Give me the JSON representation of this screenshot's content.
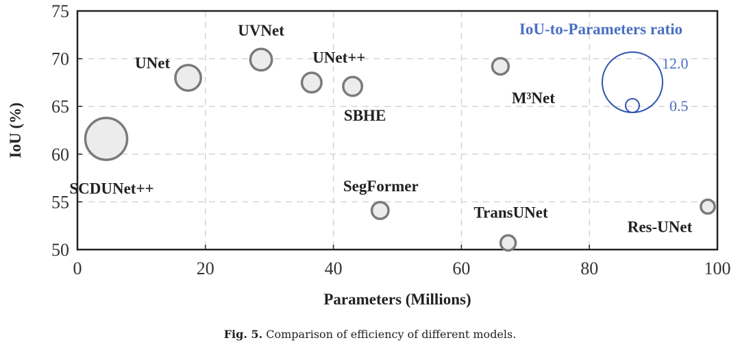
{
  "chart_data": {
    "type": "scatter",
    "xlabel": "Parameters (Millions)",
    "ylabel": "IoU (%)",
    "xlim": [
      0,
      100
    ],
    "ylim": [
      50,
      75
    ],
    "xticks": [
      "0",
      "20",
      "40",
      "60",
      "80",
      "100"
    ],
    "yticks": [
      "50",
      "55",
      "60",
      "65",
      "70",
      "75"
    ],
    "grid": true,
    "points": [
      {
        "name": "SCDUNet++",
        "x": 4.5,
        "y": 61.6,
        "ratio": 13.7
      },
      {
        "name": "UNet",
        "x": 17.3,
        "y": 68.0,
        "ratio": 3.9
      },
      {
        "name": "UVNet",
        "x": 28.7,
        "y": 69.9,
        "ratio": 2.4
      },
      {
        "name": "UNet++",
        "x": 36.6,
        "y": 67.5,
        "ratio": 1.8
      },
      {
        "name": "SBHE",
        "x": 43.0,
        "y": 67.1,
        "ratio": 1.6
      },
      {
        "name": "SegFormer",
        "x": 47.3,
        "y": 54.1,
        "ratio": 1.1
      },
      {
        "name": "M³Net",
        "x": 66.1,
        "y": 69.2,
        "ratio": 1.0
      },
      {
        "name": "TransUNet",
        "x": 67.3,
        "y": 50.7,
        "ratio": 0.75
      },
      {
        "name": "Res-UNet",
        "x": 98.5,
        "y": 54.5,
        "ratio": 0.55
      }
    ],
    "legend": {
      "title": "IoU-to-Parameters  ratio",
      "large_label": "12.0",
      "small_label": "0.5",
      "large_value": 12.0,
      "small_value": 0.5,
      "placement": "top-right",
      "color": "#4a6fc0"
    },
    "colors": {
      "bubble_fill": "#ececec",
      "bubble_stroke": "#7a7a7a",
      "grid": "#d4d4d4",
      "legend": "#2e55b0"
    }
  },
  "caption": {
    "label": "Fig. 5.",
    "text": "Comparison of efficiency of different models."
  }
}
